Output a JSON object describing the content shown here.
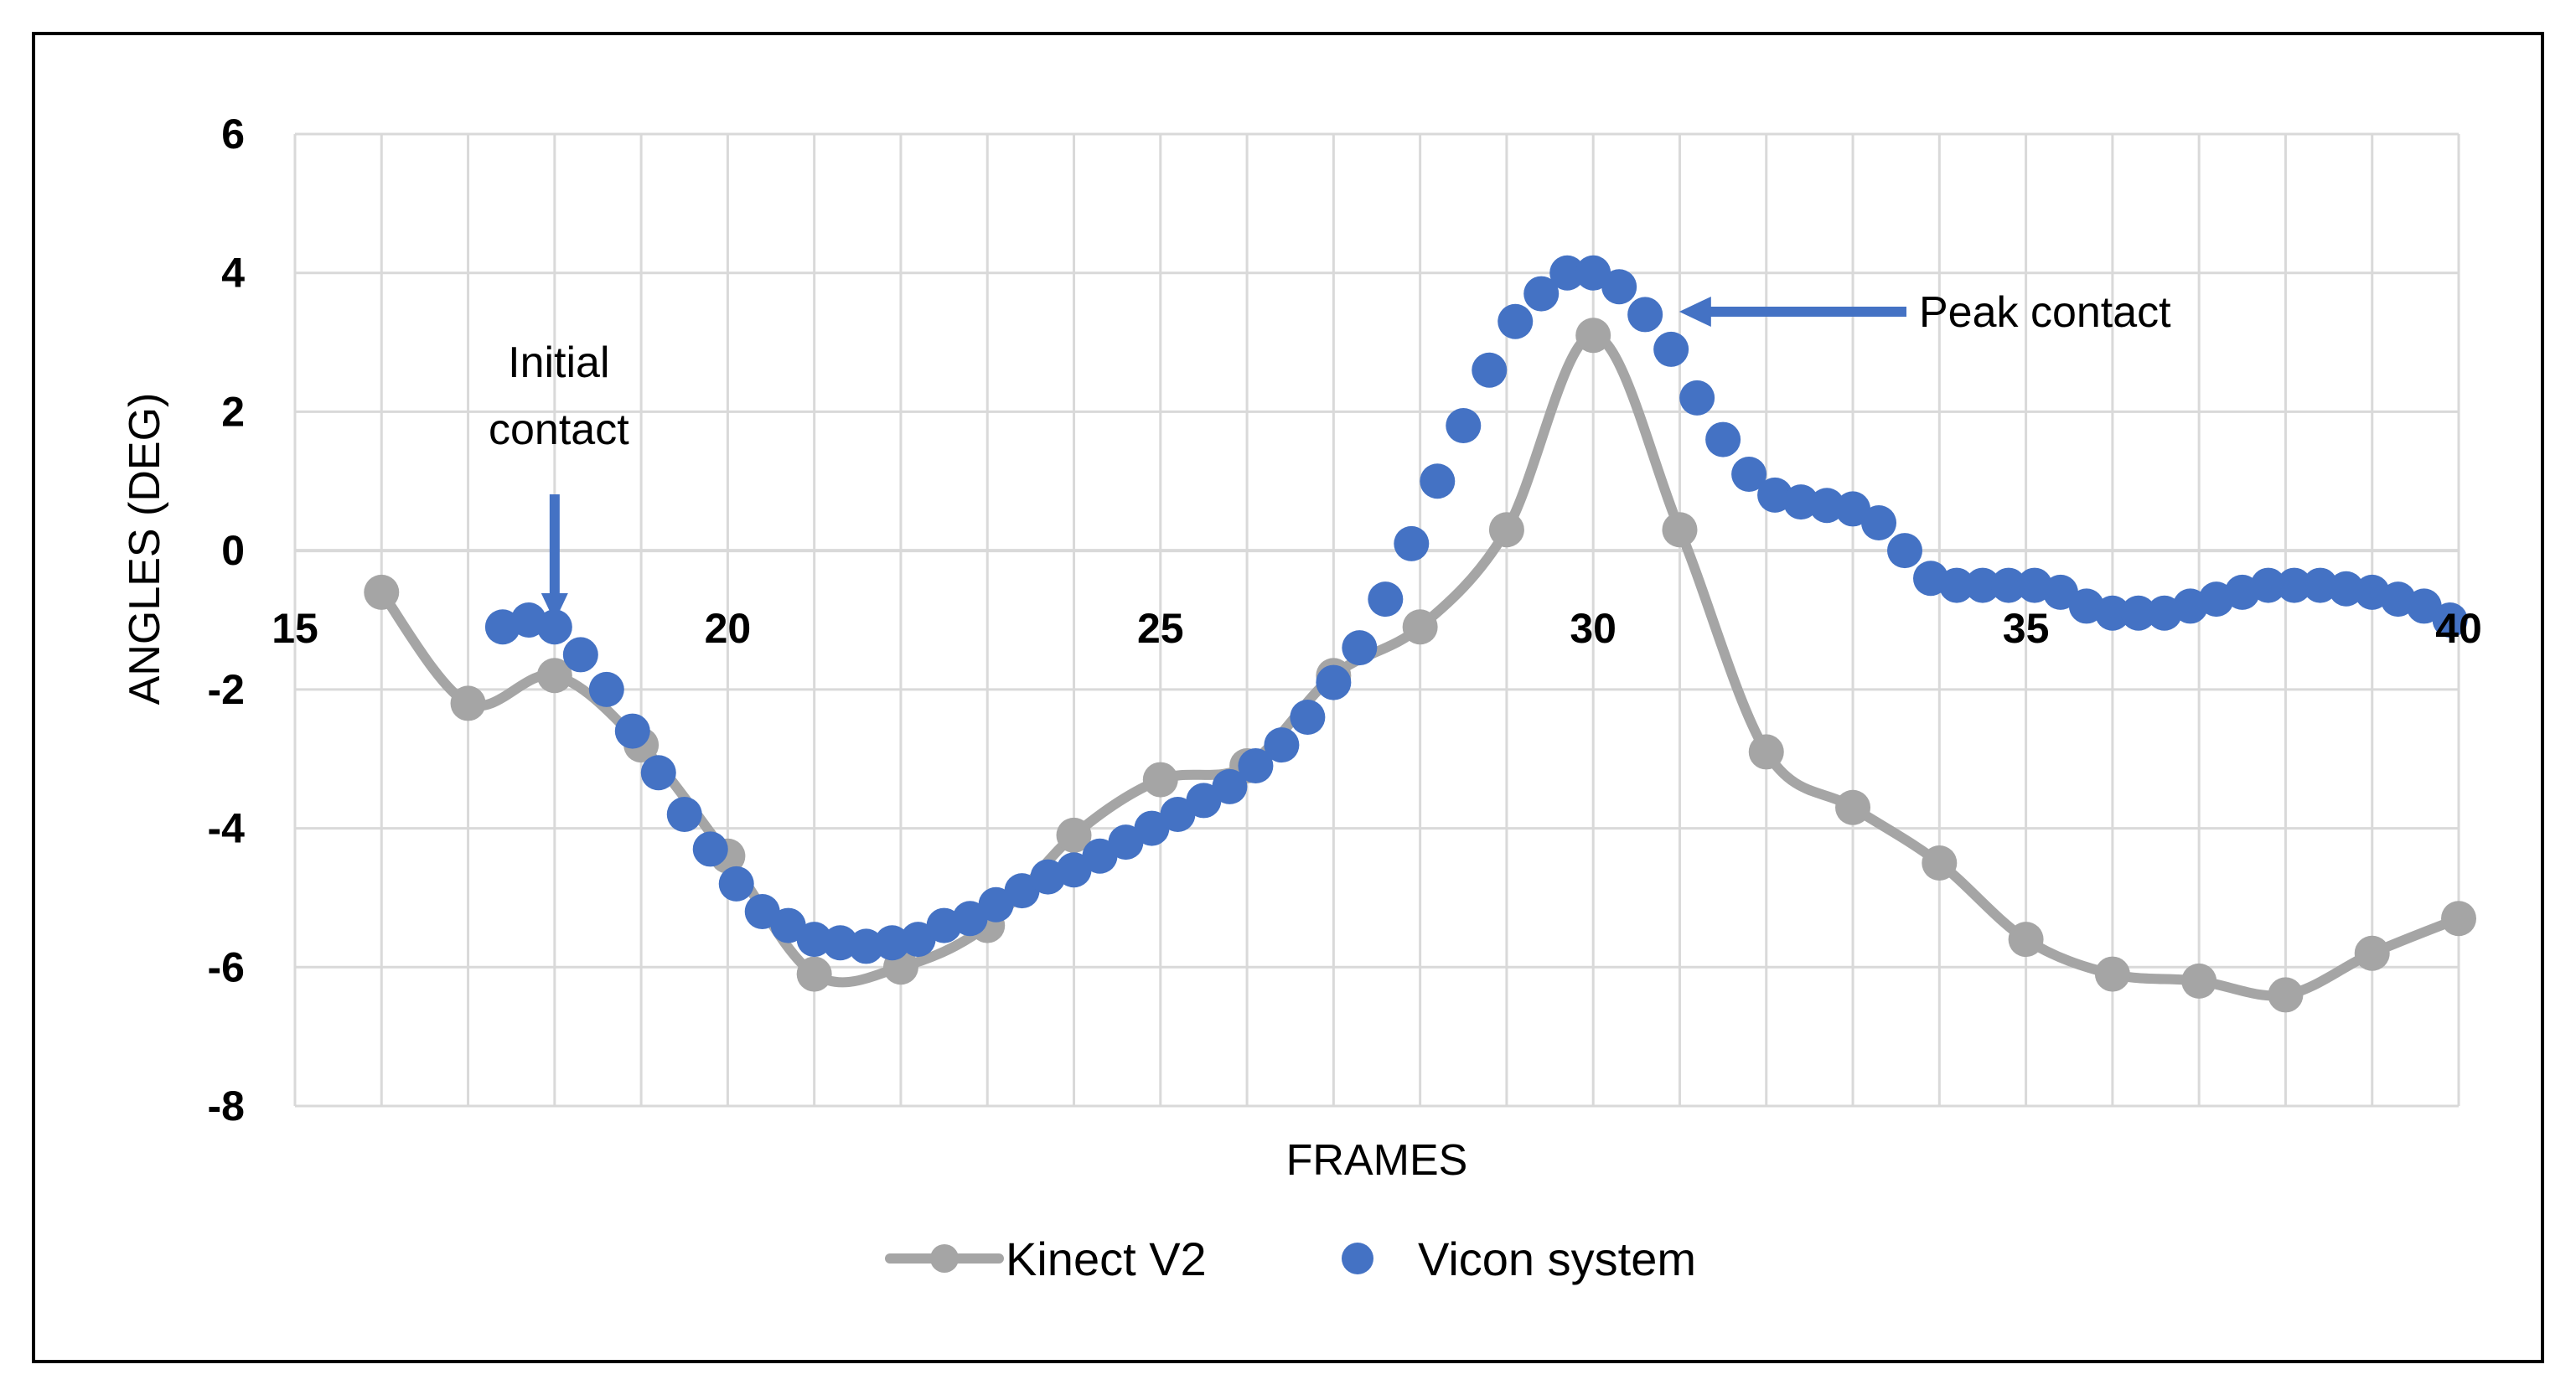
{
  "chart_data": {
    "type": "line",
    "title": "",
    "xlabel": "FRAMES",
    "ylabel": "ANGLES (DEG)",
    "xlim": [
      15,
      40
    ],
    "ylim": [
      -8,
      6
    ],
    "x_ticks": [
      15,
      20,
      25,
      30,
      35,
      40
    ],
    "y_ticks": [
      -8,
      -6,
      -4,
      -2,
      0,
      2,
      4,
      6
    ],
    "x_minor_step": 1,
    "grid": true,
    "legend": "bottom",
    "series": [
      {
        "name": "Kinect V2",
        "style": "line-with-markers",
        "color": "#A5A5A5",
        "x": [
          16,
          17,
          18,
          19,
          20,
          21,
          22,
          23,
          24,
          25,
          26,
          27,
          28,
          29,
          30,
          31,
          32,
          33,
          34,
          35,
          36,
          37,
          38,
          39,
          40
        ],
        "y": [
          -0.6,
          -2.2,
          -1.8,
          -2.8,
          -4.4,
          -6.1,
          -6.0,
          -5.4,
          -4.1,
          -3.3,
          -3.1,
          -1.8,
          -1.1,
          0.3,
          3.1,
          0.3,
          -2.9,
          -3.7,
          -4.5,
          -5.6,
          -6.1,
          -6.2,
          -6.4,
          -5.8,
          -5.3
        ]
      },
      {
        "name": "Vicon system",
        "style": "markers",
        "color": "#4472C4",
        "x": [
          17.4,
          17.7,
          18.0,
          18.3,
          18.6,
          18.9,
          19.2,
          19.5,
          19.8,
          20.1,
          20.4,
          20.7,
          21.0,
          21.3,
          21.6,
          21.9,
          22.2,
          22.5,
          22.8,
          23.1,
          23.4,
          23.7,
          24.0,
          24.3,
          24.6,
          24.9,
          25.2,
          25.5,
          25.8,
          26.1,
          26.4,
          26.7,
          27.0,
          27.3,
          27.6,
          27.9,
          28.2,
          28.5,
          28.8,
          29.1,
          29.4,
          29.7,
          30.0,
          30.3,
          30.6,
          30.9,
          31.2,
          31.5,
          31.8,
          32.1,
          32.4,
          32.7,
          33.0,
          33.3,
          33.6,
          33.9,
          34.2,
          34.5,
          34.8,
          35.1,
          35.4,
          35.7,
          36.0,
          36.3,
          36.6,
          36.9,
          37.2,
          37.5,
          37.8,
          38.1,
          38.4,
          38.7,
          39.0,
          39.3,
          39.6,
          39.9
        ],
        "y": [
          -1.1,
          -1.0,
          -1.1,
          -1.5,
          -2.0,
          -2.6,
          -3.2,
          -3.8,
          -4.3,
          -4.8,
          -5.2,
          -5.4,
          -5.6,
          -5.65,
          -5.7,
          -5.65,
          -5.6,
          -5.4,
          -5.3,
          -5.1,
          -4.9,
          -4.7,
          -4.6,
          -4.4,
          -4.2,
          -4.0,
          -3.8,
          -3.6,
          -3.4,
          -3.1,
          -2.8,
          -2.4,
          -1.9,
          -1.4,
          -0.7,
          0.1,
          1.0,
          1.8,
          2.6,
          3.3,
          3.7,
          4.0,
          4.0,
          3.8,
          3.4,
          2.9,
          2.2,
          1.6,
          1.1,
          0.8,
          0.7,
          0.65,
          0.6,
          0.4,
          0.0,
          -0.4,
          -0.5,
          -0.5,
          -0.5,
          -0.5,
          -0.6,
          -0.8,
          -0.9,
          -0.9,
          -0.9,
          -0.8,
          -0.7,
          -0.6,
          -0.5,
          -0.5,
          -0.5,
          -0.55,
          -0.6,
          -0.7,
          -0.8,
          -1.0
        ]
      }
    ],
    "annotations": [
      {
        "text_lines": [
          "Initial",
          "contact"
        ],
        "points_to": [
          18.0,
          -1.1
        ],
        "arrow_direction": "down"
      },
      {
        "text_lines": [
          "Peak contact"
        ],
        "points_to": [
          30.8,
          3.5
        ],
        "arrow_direction": "left"
      }
    ]
  }
}
